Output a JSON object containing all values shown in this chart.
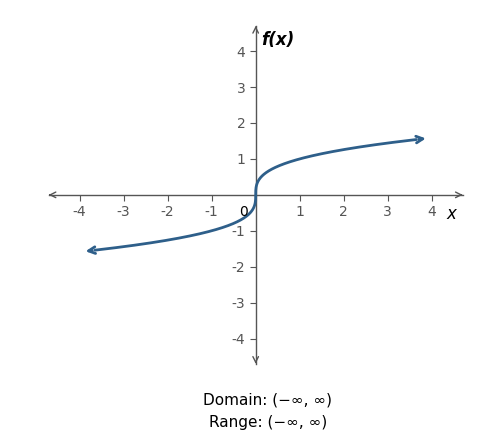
{
  "title": "f(x)",
  "xlabel": "x",
  "xlim": [
    -4.7,
    4.7
  ],
  "ylim": [
    -4.7,
    4.7
  ],
  "xticks": [
    -4,
    -3,
    -2,
    -1,
    0,
    1,
    2,
    3,
    4
  ],
  "yticks": [
    -4,
    -3,
    -2,
    -1,
    1,
    2,
    3,
    4
  ],
  "curve_color": "#2e5f8a",
  "curve_linewidth": 2.0,
  "x_start": -3.65,
  "x_end": 3.65,
  "domain_text": "Domain: (−∞, ∞)",
  "range_text": "Range: (−∞, ∞)",
  "annotation_fontsize": 11,
  "axis_label_fontsize": 12,
  "tick_fontsize": 10,
  "spine_color": "#555555",
  "spine_linewidth": 1.0,
  "background_color": "#ffffff"
}
